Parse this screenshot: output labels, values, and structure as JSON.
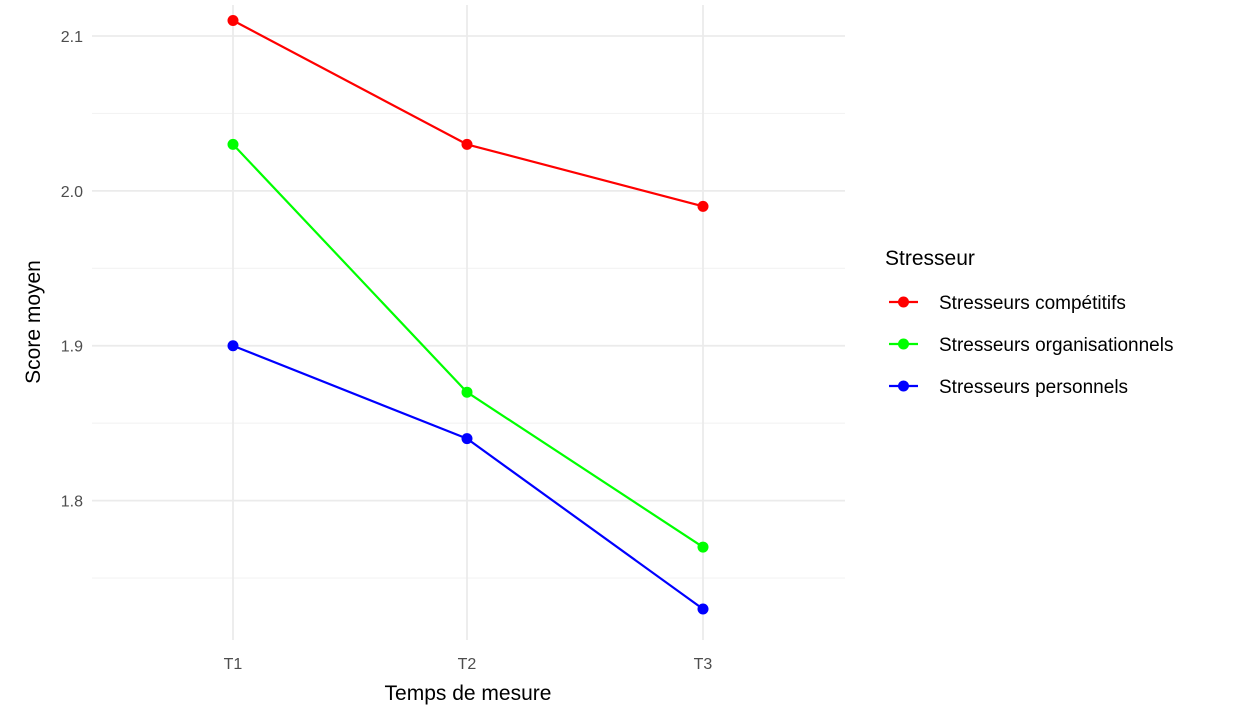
{
  "chart_data": {
    "type": "line",
    "title": "",
    "xlabel": "Temps de mesure",
    "ylabel": "Score moyen",
    "categories": [
      "T1",
      "T2",
      "T3"
    ],
    "ylim": [
      1.71,
      2.12
    ],
    "yticks": [
      "1.8",
      "1.9",
      "2.0",
      "2.1"
    ],
    "grid": true,
    "legend": {
      "title": "Stresseur",
      "placement": "right"
    },
    "series": [
      {
        "name": "Stresseurs compétitifs",
        "color": "#ff0000",
        "values": [
          2.11,
          2.03,
          1.99
        ]
      },
      {
        "name": "Stresseurs organisationnels",
        "color": "#00ff00",
        "values": [
          2.03,
          1.87,
          1.77
        ]
      },
      {
        "name": "Stresseurs personnels",
        "color": "#0000ff",
        "values": [
          1.9,
          1.84,
          1.73
        ]
      }
    ]
  }
}
